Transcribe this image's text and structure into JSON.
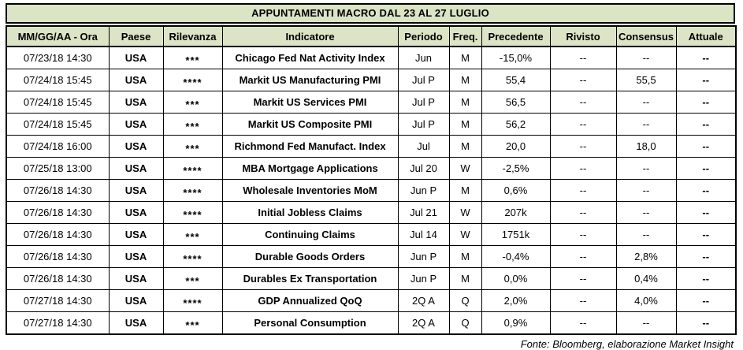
{
  "title": "APPUNTAMENTI MACRO DAL 23 AL 27 LUGLIO",
  "columns": {
    "datetime": "MM/GG/AA - Ora",
    "country": "Paese",
    "relevance": "Rilevanza",
    "indicator": "Indicatore",
    "period": "Periodo",
    "freq": "Freq.",
    "previous": "Precedente",
    "revised": "Rivisto",
    "consensus": "Consensus",
    "actual": "Attuale"
  },
  "rows": [
    {
      "datetime": "07/23/18 14:30",
      "country": "USA",
      "relevance": "***",
      "indicator": "Chicago Fed Nat Activity Index",
      "period": "Jun",
      "freq": "M",
      "previous": "-15,0%",
      "revised": "--",
      "consensus": "--",
      "actual": "--"
    },
    {
      "datetime": "07/24/18 15:45",
      "country": "USA",
      "relevance": "****",
      "indicator": "Markit US Manufacturing PMI",
      "period": "Jul P",
      "freq": "M",
      "previous": "55,4",
      "revised": "--",
      "consensus": "55,5",
      "actual": "--"
    },
    {
      "datetime": "07/24/18 15:45",
      "country": "USA",
      "relevance": "***",
      "indicator": "Markit US Services PMI",
      "period": "Jul P",
      "freq": "M",
      "previous": "56,5",
      "revised": "--",
      "consensus": "--",
      "actual": "--"
    },
    {
      "datetime": "07/24/18 15:45",
      "country": "USA",
      "relevance": "***",
      "indicator": "Markit US Composite PMI",
      "period": "Jul P",
      "freq": "M",
      "previous": "56,2",
      "revised": "--",
      "consensus": "--",
      "actual": "--"
    },
    {
      "datetime": "07/24/18 16:00",
      "country": "USA",
      "relevance": "***",
      "indicator": "Richmond Fed Manufact. Index",
      "period": "Jul",
      "freq": "M",
      "previous": "20,0",
      "revised": "--",
      "consensus": "18,0",
      "actual": "--"
    },
    {
      "datetime": "07/25/18 13:00",
      "country": "USA",
      "relevance": "****",
      "indicator": "MBA Mortgage Applications",
      "period": "Jul 20",
      "freq": "W",
      "previous": "-2,5%",
      "revised": "--",
      "consensus": "--",
      "actual": "--"
    },
    {
      "datetime": "07/26/18 14:30",
      "country": "USA",
      "relevance": "****",
      "indicator": "Wholesale Inventories MoM",
      "period": "Jun P",
      "freq": "M",
      "previous": "0,6%",
      "revised": "--",
      "consensus": "--",
      "actual": "--"
    },
    {
      "datetime": "07/26/18 14:30",
      "country": "USA",
      "relevance": "****",
      "indicator": "Initial Jobless Claims",
      "period": "Jul 21",
      "freq": "W",
      "previous": "207k",
      "revised": "--",
      "consensus": "--",
      "actual": "--"
    },
    {
      "datetime": "07/26/18 14:30",
      "country": "USA",
      "relevance": "***",
      "indicator": "Continuing Claims",
      "period": "Jul 14",
      "freq": "W",
      "previous": "1751k",
      "revised": "--",
      "consensus": "--",
      "actual": "--"
    },
    {
      "datetime": "07/26/18 14:30",
      "country": "USA",
      "relevance": "****",
      "indicator": "Durable Goods Orders",
      "period": "Jun P",
      "freq": "M",
      "previous": "-0,4%",
      "revised": "--",
      "consensus": "2,8%",
      "actual": "--"
    },
    {
      "datetime": "07/26/18 14:30",
      "country": "USA",
      "relevance": "***",
      "indicator": "Durables Ex Transportation",
      "period": "Jun P",
      "freq": "M",
      "previous": "0,0%",
      "revised": "--",
      "consensus": "0,4%",
      "actual": "--"
    },
    {
      "datetime": "07/27/18 14:30",
      "country": "USA",
      "relevance": "****",
      "indicator": "GDP Annualized QoQ",
      "period": "2Q A",
      "freq": "Q",
      "previous": "2,0%",
      "revised": "--",
      "consensus": "4,0%",
      "actual": "--"
    },
    {
      "datetime": "07/27/18 14:30",
      "country": "USA",
      "relevance": "***",
      "indicator": "Personal Consumption",
      "period": "2Q A",
      "freq": "Q",
      "previous": "0,9%",
      "revised": "--",
      "consensus": "--",
      "actual": "--"
    }
  ],
  "footer": "Fonte: Bloomberg, elaborazione Market Insight",
  "colors": {
    "header_bg": "#dbe4c5",
    "star": "#ff0000",
    "border": "#000000"
  }
}
